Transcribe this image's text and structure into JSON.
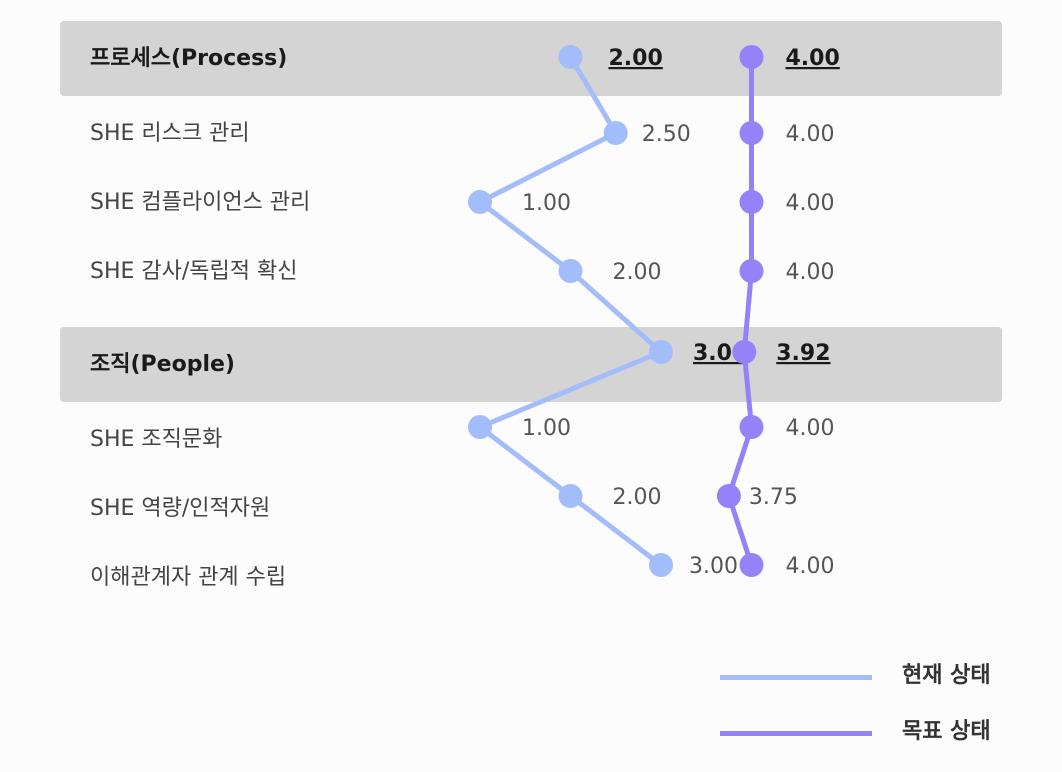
{
  "chart_data": {
    "type": "line",
    "orientation": "vertical-categories",
    "categories": [
      "프로세스(Process)",
      "SHE 리스크 관리",
      "SHE 컴플라이언스 관리",
      "SHE 감사/독립적 확신",
      "조직(People)",
      "SHE 조직문화",
      "SHE 역량/인적자원",
      "이해관계자 관계 수립"
    ],
    "group_rows": [
      0,
      4
    ],
    "series": [
      {
        "name": "현재 상태",
        "color": "#a3bdfa",
        "values": [
          2.0,
          2.5,
          1.0,
          2.0,
          3.0,
          1.0,
          2.0,
          3.0
        ],
        "labels": [
          "2.00",
          "2.50",
          "1.00",
          "2.00",
          "3.00",
          "1.00",
          "2.00",
          "3.00"
        ]
      },
      {
        "name": "목표 상태",
        "color": "#9682f8",
        "values": [
          4.0,
          4.0,
          4.0,
          4.0,
          3.92,
          4.0,
          3.75,
          4.0
        ],
        "labels": [
          "4.00",
          "4.00",
          "4.00",
          "4.00",
          "3.92",
          "4.00",
          "3.75",
          "4.00"
        ]
      }
    ],
    "legend_position": "bottom-right",
    "grid": false
  },
  "legend": {
    "current_label": "현재 상태",
    "target_label": "목표 상태"
  }
}
